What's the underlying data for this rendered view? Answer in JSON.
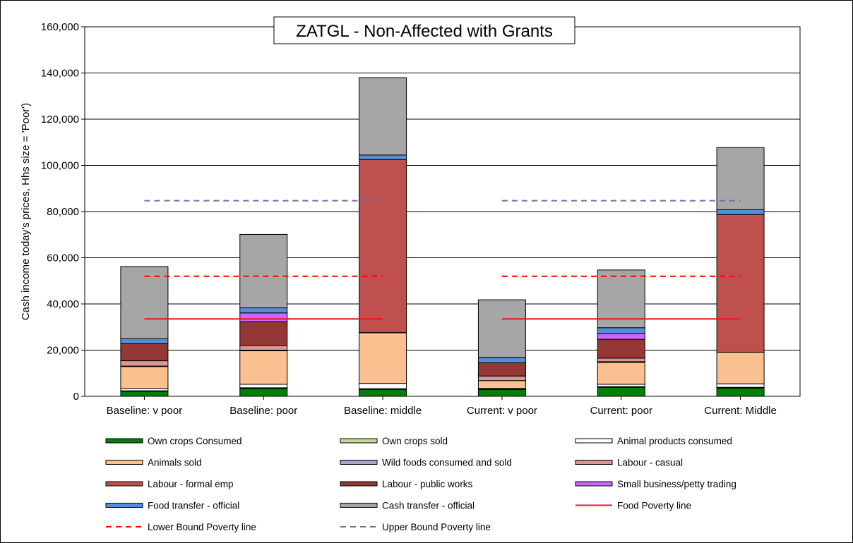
{
  "chart_data": {
    "type": "bar",
    "stacked": true,
    "title": "ZATGL - Non-Affected with Grants",
    "ylabel": "Cash income today's prices, Hhs size = 'Poor')",
    "xlabel": "",
    "ylim": [
      0,
      160000
    ],
    "yticks": [
      0,
      20000,
      40000,
      60000,
      80000,
      100000,
      120000,
      140000,
      160000
    ],
    "ytick_labels": [
      "0",
      "20,000",
      "40,000",
      "60,000",
      "80,000",
      "100,000",
      "120,000",
      "140,000",
      "160,000"
    ],
    "grid": true,
    "legend_position": "bottom",
    "categories": [
      "Baseline: v poor",
      "Baseline: poor",
      "Baseline: middle",
      "Current: v poor",
      "Current: poor",
      "Current: Middle"
    ],
    "series": [
      {
        "name": "Own crops Consumed",
        "color": "#00800a",
        "values": [
          2200,
          3400,
          3000,
          2900,
          3900,
          3600
        ]
      },
      {
        "name": "Own crops sold",
        "color": "#c4d79b",
        "values": [
          200,
          300,
          300,
          200,
          300,
          300
        ]
      },
      {
        "name": "Animal products consumed",
        "color": "#ffffff",
        "values": [
          1000,
          1500,
          2300,
          300,
          1000,
          1500
        ]
      },
      {
        "name": "Animals sold",
        "color": "#fac090",
        "values": [
          9500,
          14500,
          21900,
          3400,
          9500,
          13700
        ]
      },
      {
        "name": "Wild foods consumed and sold",
        "color": "#b1a0c7",
        "values": [
          200,
          300,
          100,
          0,
          300,
          0
        ]
      },
      {
        "name": "Labour - casual",
        "color": "#da9694",
        "values": [
          2300,
          2000,
          0,
          2000,
          1500,
          0
        ]
      },
      {
        "name": "Labour - formal emp",
        "color": "#c0504d",
        "values": [
          0,
          0,
          74900,
          0,
          0,
          59600
        ]
      },
      {
        "name": "Labour - public works",
        "color": "#953735",
        "values": [
          7400,
          10300,
          0,
          5700,
          8200,
          0
        ]
      },
      {
        "name": "Small business/petty trading",
        "color": "#cc66ff",
        "values": [
          0,
          3800,
          0,
          0,
          2500,
          0
        ]
      },
      {
        "name": "Food transfer - official",
        "color": "#558ed5",
        "values": [
          2100,
          2200,
          2000,
          2400,
          2500,
          2100
        ]
      },
      {
        "name": "Cash transfer - official",
        "color": "#a6a6a6",
        "values": [
          31300,
          31800,
          33500,
          24900,
          25000,
          26900
        ]
      }
    ],
    "reference_lines": [
      {
        "name": "Food Poverty line",
        "color": "#e31a1c",
        "style": "solid",
        "value": 33500
      },
      {
        "name": "Lower Bound Poverty line",
        "color": "#ff0000",
        "style": "dashed",
        "value": 52000
      },
      {
        "name": "Upper Bound Poverty line",
        "color": "#8064a2",
        "style": "dashed",
        "value": 84700
      }
    ]
  }
}
